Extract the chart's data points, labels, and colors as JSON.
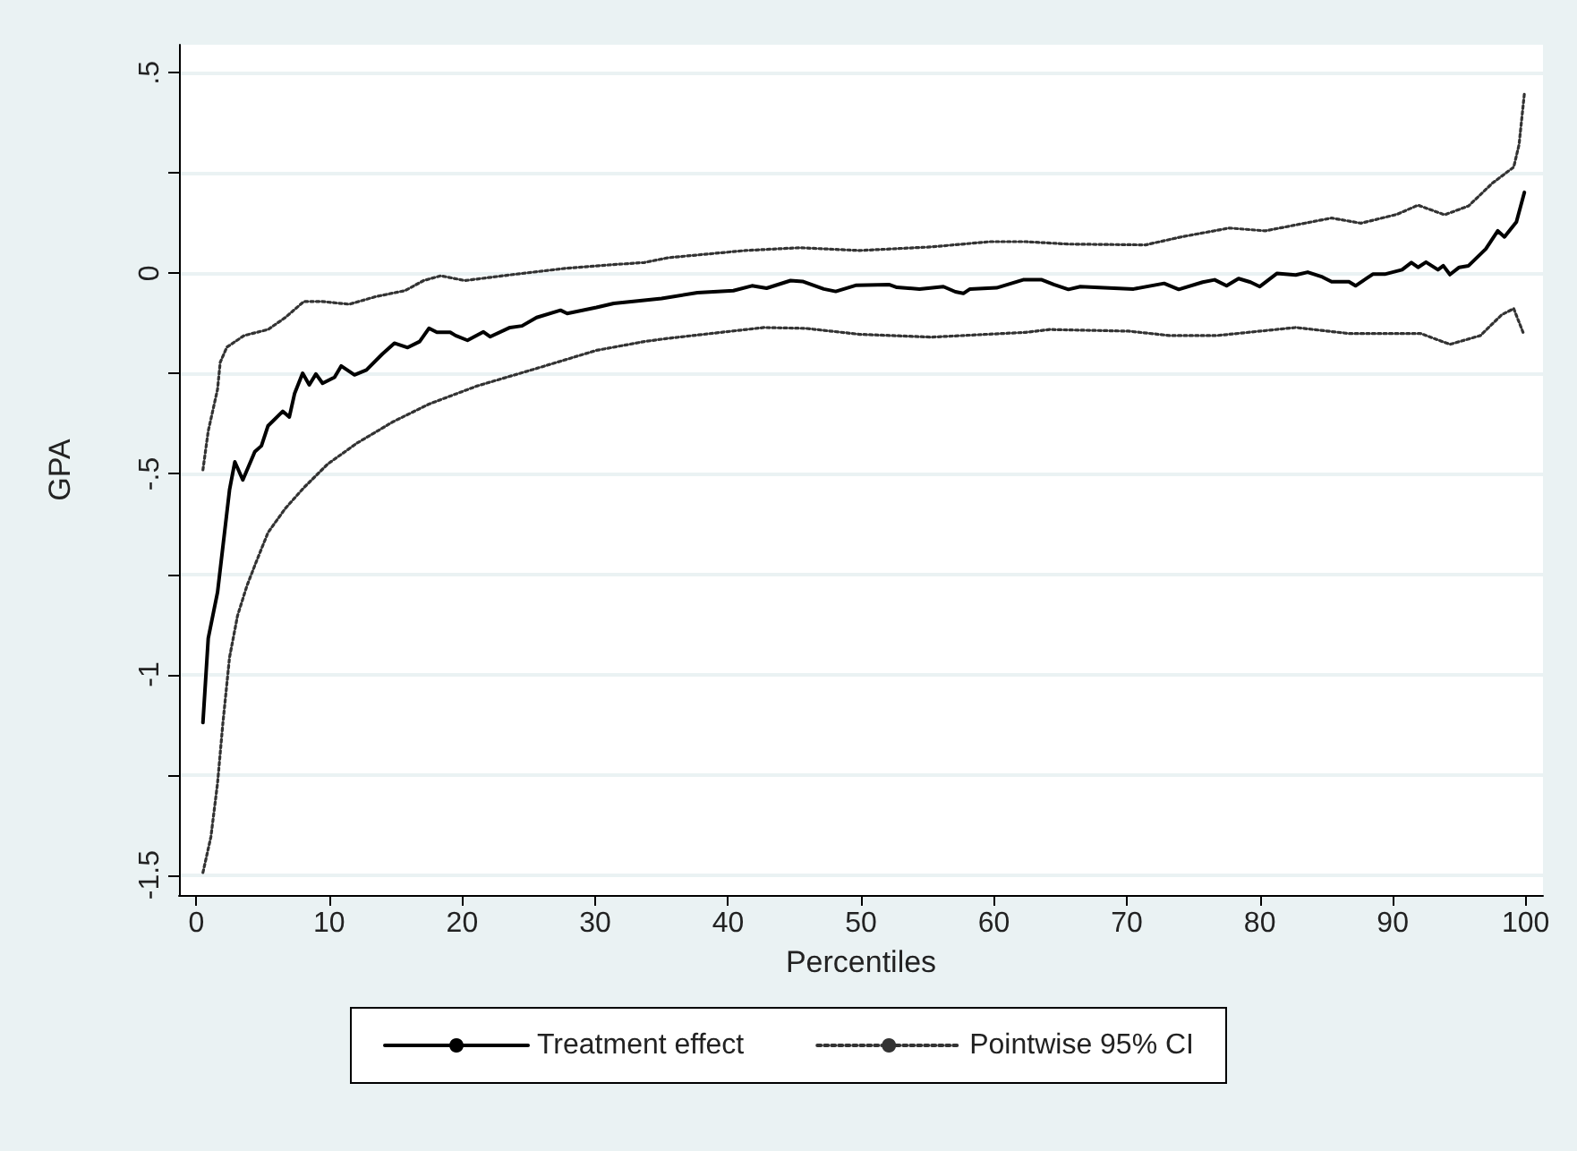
{
  "chart_data": {
    "type": "line",
    "xlabel": "Percentiles",
    "ylabel": "GPA",
    "xlim": [
      -1.3,
      101.3
    ],
    "ylim": [
      -1.55,
      0.57
    ],
    "xticks": [
      0,
      10,
      20,
      30,
      40,
      50,
      60,
      70,
      80,
      90,
      100
    ],
    "yticks": [
      {
        "value": -1.5,
        "label": "-1.5"
      },
      {
        "value": -1.25,
        "label": null
      },
      {
        "value": -1,
        "label": "-1"
      },
      {
        "value": -0.75,
        "label": null
      },
      {
        "value": -0.5,
        "label": "-.5"
      },
      {
        "value": -0.25,
        "label": null
      },
      {
        "value": 0,
        "label": "0"
      },
      {
        "value": 0.25,
        "label": null
      },
      {
        "value": 0.5,
        "label": ".5"
      }
    ],
    "grid": "y",
    "legend": "bottom",
    "marker": "none",
    "series": [
      {
        "name": "Treatment effect",
        "color": "#000000",
        "line_style": "solid",
        "x": [
          0.5,
          0.9,
          1.6,
          2.5,
          2.9,
          3.5,
          4.4,
          4.9,
          5.4,
          6.5,
          7.0,
          7.4,
          8.0,
          8.5,
          9.0,
          9.5,
          10.4,
          10.9,
          11.9,
          12.8,
          14.0,
          14.9,
          15.9,
          16.8,
          17.5,
          18.1,
          19.1,
          19.5,
          20.4,
          21.6,
          22.1,
          23.6,
          24.5,
          25.6,
          27.4,
          27.9,
          30.1,
          31.4,
          33.7,
          35.0,
          37.7,
          40.4,
          41.8,
          42.9,
          44.7,
          45.6,
          47.2,
          48.1,
          49.6,
          52.1,
          52.7,
          54.4,
          56.2,
          57.1,
          57.7,
          58.2,
          60.2,
          62.2,
          63.6,
          64.5,
          65.6,
          66.5,
          68.3,
          70.5,
          72.8,
          73.9,
          75.7,
          76.6,
          77.5,
          78.4,
          79.3,
          80.0,
          81.3,
          82.7,
          83.6,
          84.7,
          85.4,
          86.7,
          87.2,
          88.5,
          89.4,
          90.7,
          91.4,
          91.9,
          92.5,
          93.4,
          93.8,
          94.3,
          95.0,
          95.7,
          97.0,
          97.9,
          98.4,
          99.3,
          99.9
        ],
        "values": [
          -1.12,
          -0.91,
          -0.795,
          -0.54,
          -0.47,
          -0.515,
          -0.445,
          -0.43,
          -0.38,
          -0.344,
          -0.358,
          -0.299,
          -0.249,
          -0.278,
          -0.251,
          -0.274,
          -0.259,
          -0.231,
          -0.253,
          -0.241,
          -0.201,
          -0.174,
          -0.185,
          -0.17,
          -0.137,
          -0.147,
          -0.147,
          -0.155,
          -0.167,
          -0.146,
          -0.158,
          -0.135,
          -0.131,
          -0.11,
          -0.092,
          -0.1,
          -0.085,
          -0.075,
          -0.067,
          -0.0625,
          -0.048,
          -0.043,
          -0.031,
          -0.037,
          -0.018,
          -0.02,
          -0.039,
          -0.045,
          -0.03,
          -0.028,
          -0.035,
          -0.039,
          -0.033,
          -0.046,
          -0.05,
          -0.039,
          -0.036,
          -0.016,
          -0.016,
          -0.028,
          -0.04,
          -0.033,
          -0.036,
          -0.039,
          -0.025,
          -0.04,
          -0.022,
          -0.016,
          -0.031,
          -0.013,
          -0.022,
          -0.033,
          0.0,
          -0.004,
          0.003,
          -0.009,
          -0.021,
          -0.021,
          -0.031,
          -0.002,
          -0.002,
          0.009,
          0.027,
          0.015,
          0.028,
          0.009,
          0.019,
          -0.003,
          0.015,
          0.019,
          0.061,
          0.106,
          0.091,
          0.128,
          0.202
        ]
      },
      {
        "name": "Pointwise 95% CI",
        "color": "#333333",
        "line_style": "dotted",
        "x": [
          0.5,
          0.9,
          1.6,
          1.8,
          2.3,
          3.6,
          5.4,
          6.7,
          8.1,
          9.4,
          11.5,
          13.5,
          15.7,
          17.1,
          18.4,
          20.2,
          23.8,
          27.9,
          31.0,
          33.7,
          35.5,
          41.3,
          45.4,
          49.9,
          55.3,
          59.7,
          62.4,
          65.6,
          71.4,
          74.1,
          77.7,
          80.4,
          85.4,
          87.6,
          90.3,
          91.9,
          93.9,
          95.7,
          97.5,
          99.1,
          99.5,
          99.9
        ],
        "values": [
          -0.49,
          -0.393,
          -0.289,
          -0.222,
          -0.184,
          -0.155,
          -0.14,
          -0.11,
          -0.07,
          -0.07,
          -0.077,
          -0.058,
          -0.043,
          -0.018,
          -0.006,
          -0.018,
          -0.003,
          0.013,
          0.021,
          0.027,
          0.039,
          0.057,
          0.064,
          0.057,
          0.066,
          0.079,
          0.079,
          0.073,
          0.071,
          0.091,
          0.113,
          0.106,
          0.138,
          0.125,
          0.147,
          0.17,
          0.146,
          0.168,
          0.225,
          0.265,
          0.321,
          0.448
        ]
      },
      {
        "color": "#333333",
        "line_style": "dotted",
        "x": [
          0.5,
          1.1,
          1.6,
          2.0,
          2.5,
          3.1,
          3.8,
          4.5,
          5.4,
          6.7,
          8.1,
          9.9,
          12.1,
          14.8,
          17.5,
          21.1,
          25.6,
          30.1,
          33.7,
          35.5,
          42.7,
          45.8,
          49.9,
          55.3,
          62.4,
          64.2,
          70.1,
          73.2,
          76.8,
          82.7,
          86.7,
          92.1,
          94.3,
          96.6,
          98.2,
          99.1,
          99.8
        ],
        "values": [
          -1.494,
          -1.405,
          -1.271,
          -1.122,
          -0.958,
          -0.854,
          -0.78,
          -0.72,
          -0.646,
          -0.586,
          -0.534,
          -0.475,
          -0.423,
          -0.37,
          -0.326,
          -0.281,
          -0.237,
          -0.192,
          -0.17,
          -0.162,
          -0.135,
          -0.137,
          -0.152,
          -0.159,
          -0.147,
          -0.14,
          -0.144,
          -0.155,
          -0.155,
          -0.135,
          -0.15,
          -0.15,
          -0.177,
          -0.155,
          -0.103,
          -0.088,
          -0.147
        ]
      }
    ]
  }
}
